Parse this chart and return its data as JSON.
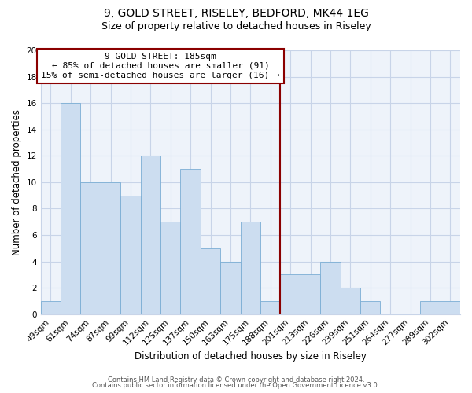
{
  "title": "9, GOLD STREET, RISELEY, BEDFORD, MK44 1EG",
  "subtitle": "Size of property relative to detached houses in Riseley",
  "xlabel": "Distribution of detached houses by size in Riseley",
  "ylabel": "Number of detached properties",
  "categories": [
    "49sqm",
    "61sqm",
    "74sqm",
    "87sqm",
    "99sqm",
    "112sqm",
    "125sqm",
    "137sqm",
    "150sqm",
    "163sqm",
    "175sqm",
    "188sqm",
    "201sqm",
    "213sqm",
    "226sqm",
    "239sqm",
    "251sqm",
    "264sqm",
    "277sqm",
    "289sqm",
    "302sqm"
  ],
  "values": [
    1,
    16,
    10,
    10,
    9,
    12,
    7,
    11,
    5,
    4,
    7,
    1,
    3,
    3,
    4,
    2,
    1,
    0,
    0,
    1,
    1
  ],
  "bar_color": "#ccddf0",
  "bar_edge_color": "#7aadd4",
  "reference_line_x_label": "188sqm",
  "reference_line_color": "#8b0000",
  "ylim": [
    0,
    20
  ],
  "yticks": [
    0,
    2,
    4,
    6,
    8,
    10,
    12,
    14,
    16,
    18,
    20
  ],
  "annotation_title": "9 GOLD STREET: 185sqm",
  "annotation_line1": "← 85% of detached houses are smaller (91)",
  "annotation_line2": "15% of semi-detached houses are larger (16) →",
  "footer1": "Contains HM Land Registry data © Crown copyright and database right 2024.",
  "footer2": "Contains public sector information licensed under the Open Government Licence v3.0.",
  "background_color": "#ffffff",
  "plot_bg_color": "#eef3fa",
  "grid_color": "#c8d4e8",
  "title_fontsize": 10,
  "subtitle_fontsize": 9,
  "axis_label_fontsize": 8.5,
  "tick_fontsize": 7.5,
  "annotation_fontsize": 8,
  "footer_fontsize": 6
}
